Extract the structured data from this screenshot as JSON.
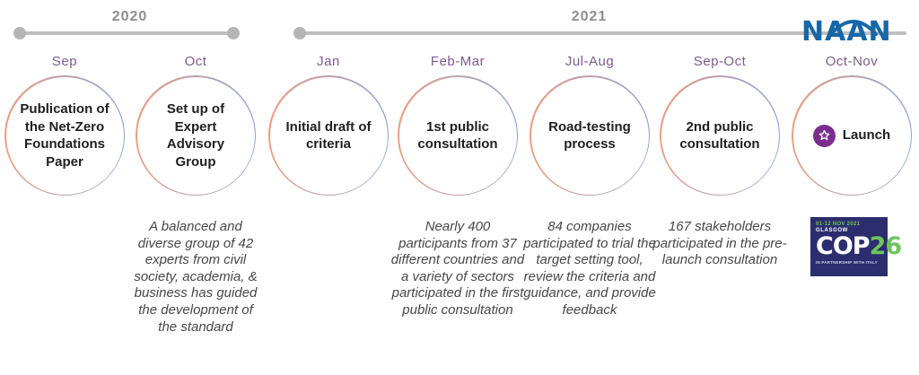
{
  "timeline": {
    "eras": [
      {
        "label": "2020"
      },
      {
        "label": "2021"
      }
    ]
  },
  "logo": {
    "text": "NAAN"
  },
  "milestones": [
    {
      "month": "Sep",
      "title": "Publication of the Net-Zero Foundations Paper",
      "description": "",
      "icon": ""
    },
    {
      "month": "Oct",
      "title": "Set up of Expert Advisory Group",
      "description": "A balanced and diverse group of 42 experts from civil society, academia, & business has guided the development of the standard",
      "icon": ""
    },
    {
      "month": "Jan",
      "title": "Initial draft of criteria",
      "description": "",
      "icon": ""
    },
    {
      "month": "Feb-Mar",
      "title": "1st public consultation",
      "description": "Nearly 400 participants from 37 different countries and a variety of sectors participated in the first public consultation",
      "icon": ""
    },
    {
      "month": "Jul-Aug",
      "title": "Road-testing process",
      "description": "84 companies participated to trial the target setting tool, review the criteria and guidance, and provide feedback",
      "icon": ""
    },
    {
      "month": "Sep-Oct",
      "title": "2nd public consultation",
      "description": "167 stakeholders participated in the pre-launch consultation",
      "icon": ""
    },
    {
      "month": "Oct-Nov",
      "title": "Launch",
      "description": "",
      "icon": "star"
    }
  ],
  "cop26": {
    "dates": "01-12 NOV 2021",
    "city": "GLASGOW",
    "cop": "COP",
    "num": "26",
    "partnership": "IN PARTNERSHIP WITH ITALY"
  },
  "colors": {
    "timeline_gray": "#bfbfbf",
    "year_text": "#8d8d8d",
    "month_text": "#7d5c8e",
    "circle_gradient_left": "#eb9f83",
    "circle_gradient_right": "#8ba2d8",
    "title_text": "#1f1f1f",
    "description_text": "#474747",
    "naan_blue": "#1667a7",
    "launch_purple": "#7b2e8d",
    "cop_navy": "#2b2d6e",
    "cop_green": "#6ec45c"
  }
}
